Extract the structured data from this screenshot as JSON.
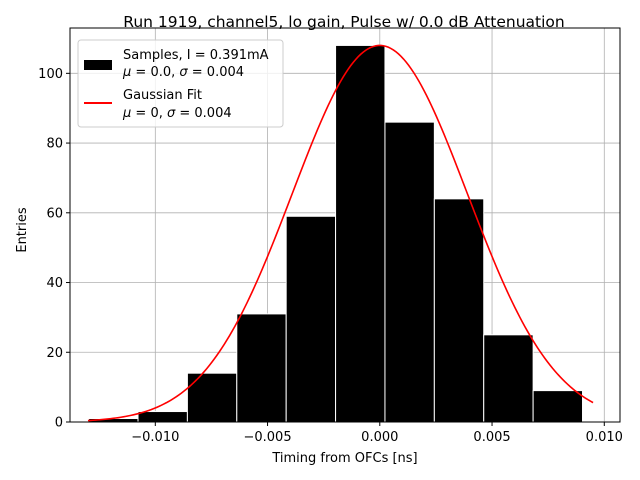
{
  "chart_data": {
    "type": "bar",
    "title": "Run 1919, channel5, lo gain, Pulse w/ 0.0 dB Attenuation",
    "xlabel": "Timing from OFCs [ns]",
    "ylabel": "Entries",
    "xlim": [
      -0.0138,
      0.0107
    ],
    "ylim": [
      0,
      113
    ],
    "grid": true,
    "xticks": [
      -0.01,
      -0.005,
      0.0,
      0.005,
      0.01
    ],
    "xtick_labels": [
      "−0.010",
      "−0.005",
      "0.000",
      "0.005",
      "0.010"
    ],
    "yticks": [
      0,
      20,
      40,
      60,
      80,
      100
    ],
    "ytick_labels": [
      "0",
      "20",
      "40",
      "60",
      "80",
      "100"
    ],
    "bin_edges": [
      -0.01297,
      -0.01077,
      -0.00857,
      -0.00637,
      -0.00417,
      -0.00197,
      0.00023,
      0.00243,
      0.00463,
      0.00683,
      0.00903
    ],
    "values": [
      1,
      3,
      14,
      31,
      59,
      108,
      86,
      64,
      25,
      9
    ],
    "bar_color": "#000000",
    "fit": {
      "mu": 0.0,
      "sigma": 0.0039,
      "amplitude": 108,
      "x_range": [
        -0.013,
        0.0095
      ],
      "color": "#ff0000"
    },
    "legend": {
      "position": "upper left",
      "entries": [
        {
          "line1": "Samples, I = 0.391mA",
          "mu_val": " = 0.0, ",
          "sigma_val": " = 0.004"
        },
        {
          "line1": "Gaussian Fit",
          "mu_val": " = 0, ",
          "sigma_val": " = 0.004"
        }
      ],
      "mu_symbol": "μ",
      "sigma_symbol": "σ"
    }
  }
}
